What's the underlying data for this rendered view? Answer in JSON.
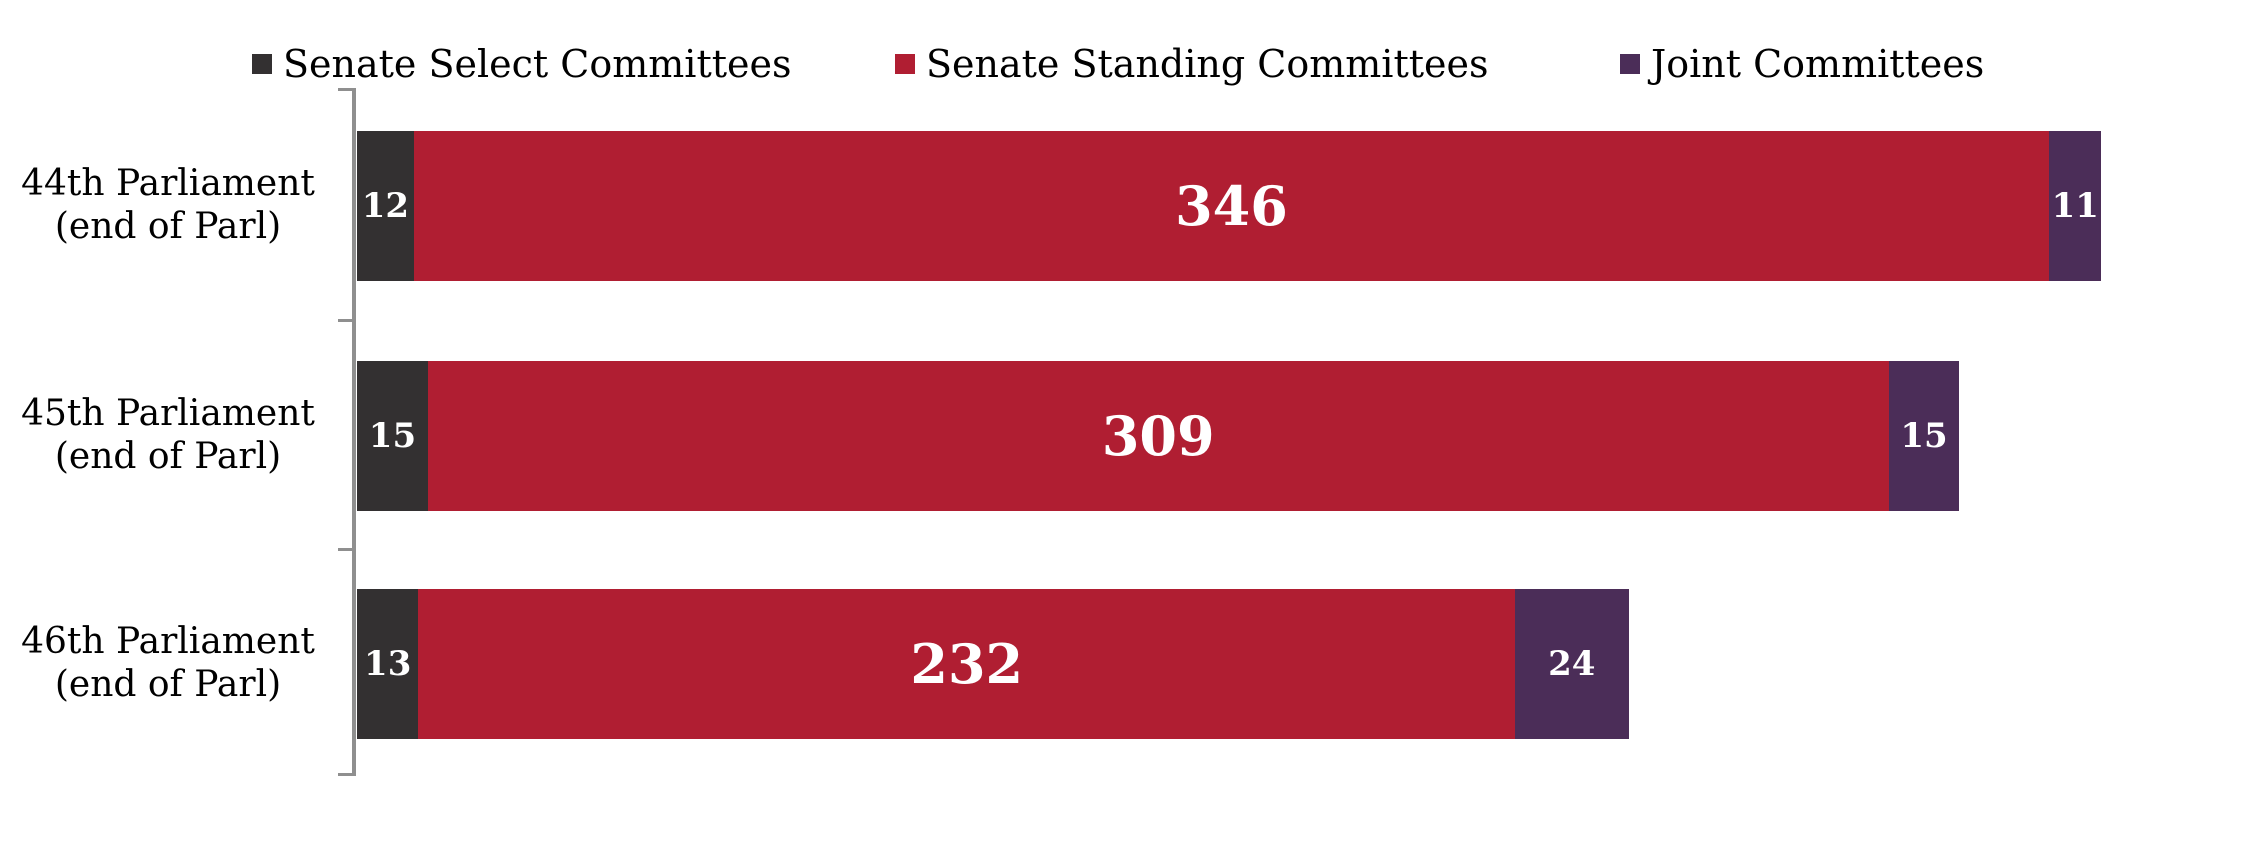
{
  "chart_data": {
    "type": "bar",
    "orientation": "horizontal",
    "stacked": true,
    "title": "",
    "xlabel": "",
    "ylabel": "",
    "legend_position": "top",
    "grid": false,
    "axis_color": "#8f8f8f",
    "value_labels": "white, bold, centered inside segments",
    "categories": [
      {
        "line1": "44th Parliament",
        "line2": "(end of Parl)"
      },
      {
        "line1": "45th Parliament",
        "line2": "(end of Parl)"
      },
      {
        "line1": "46th Parliament",
        "line2": "(end of Parl)"
      }
    ],
    "series": [
      {
        "name": "Senate Select Committees",
        "color": "#333031",
        "values": [
          12,
          15,
          13
        ]
      },
      {
        "name": "Senate Standing Committees",
        "color": "#b01e32",
        "values": [
          346,
          309,
          232
        ]
      },
      {
        "name": "Joint Committees",
        "color": "#4b2d58",
        "values": [
          11,
          15,
          24
        ]
      }
    ],
    "totals": [
      369,
      339,
      269
    ]
  }
}
